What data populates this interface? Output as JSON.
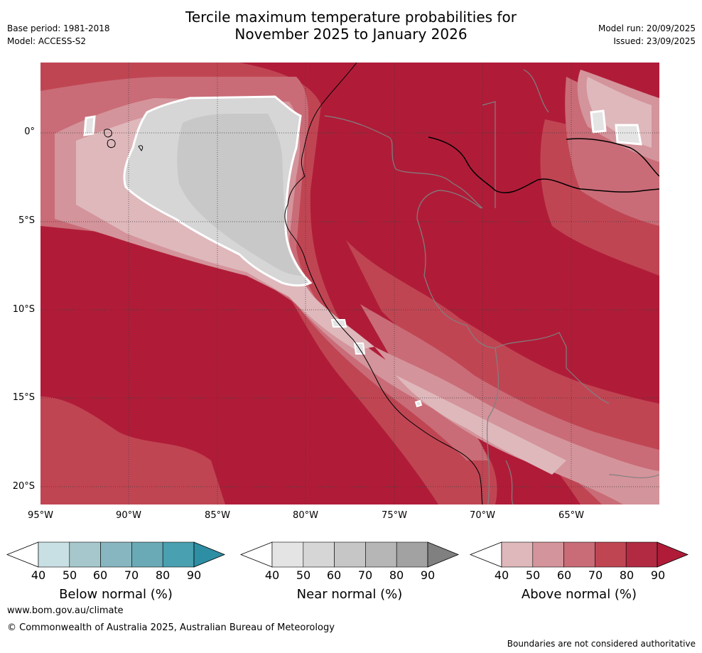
{
  "header": {
    "title_line1": "Tercile maximum temperature probabilities for",
    "title_line2": "November 2025 to January 2026",
    "base_period": "Base period: 1981-2018",
    "model": "Model: ACCESS-S2",
    "model_run": "Model run: 20/09/2025",
    "issued": "Issued: 23/09/2025"
  },
  "map": {
    "lat_ticks": [
      "0°",
      "5°S",
      "10°S",
      "15°S",
      "20°S"
    ],
    "lon_ticks": [
      "95°W",
      "90°W",
      "85°W",
      "80°W",
      "75°W",
      "70°W",
      "65°W"
    ],
    "colors": {
      "above_90": "#b01c38",
      "above_80": "#c04553",
      "above_70": "#c96c77",
      "above_60": "#d4949b",
      "above_50": "#dfb8bc",
      "near_60": "#d6d6d6",
      "near_70": "#c8c8c8",
      "coast": "#000000",
      "border": "#808080",
      "grid": "#3a3a3a"
    }
  },
  "colorbars": [
    {
      "label": "Below normal (%)",
      "ticks": [
        "40",
        "50",
        "60",
        "70",
        "80",
        "90"
      ],
      "colors": [
        "#ffffff",
        "#c8e0e4",
        "#a6c8cd",
        "#88b6c0",
        "#6aaab6",
        "#48a0b0",
        "#2e8ea3"
      ]
    },
    {
      "label": "Near normal (%)",
      "ticks": [
        "40",
        "50",
        "60",
        "70",
        "80",
        "90"
      ],
      "colors": [
        "#ffffff",
        "#e4e4e4",
        "#d6d6d6",
        "#c6c6c6",
        "#b6b6b6",
        "#a2a2a2",
        "#808080"
      ]
    },
    {
      "label": "Above normal (%)",
      "ticks": [
        "40",
        "50",
        "60",
        "70",
        "80",
        "90"
      ],
      "colors": [
        "#ffffff",
        "#dfb8bc",
        "#d4949b",
        "#c96c77",
        "#c04553",
        "#b12a42",
        "#b01c38"
      ]
    }
  ],
  "footer": {
    "website": "www.bom.gov.au/climate",
    "copyright": "© Commonwealth of Australia 2025, Australian Bureau of Meteorology",
    "disclaimer": "Boundaries are not considered authoritative"
  }
}
